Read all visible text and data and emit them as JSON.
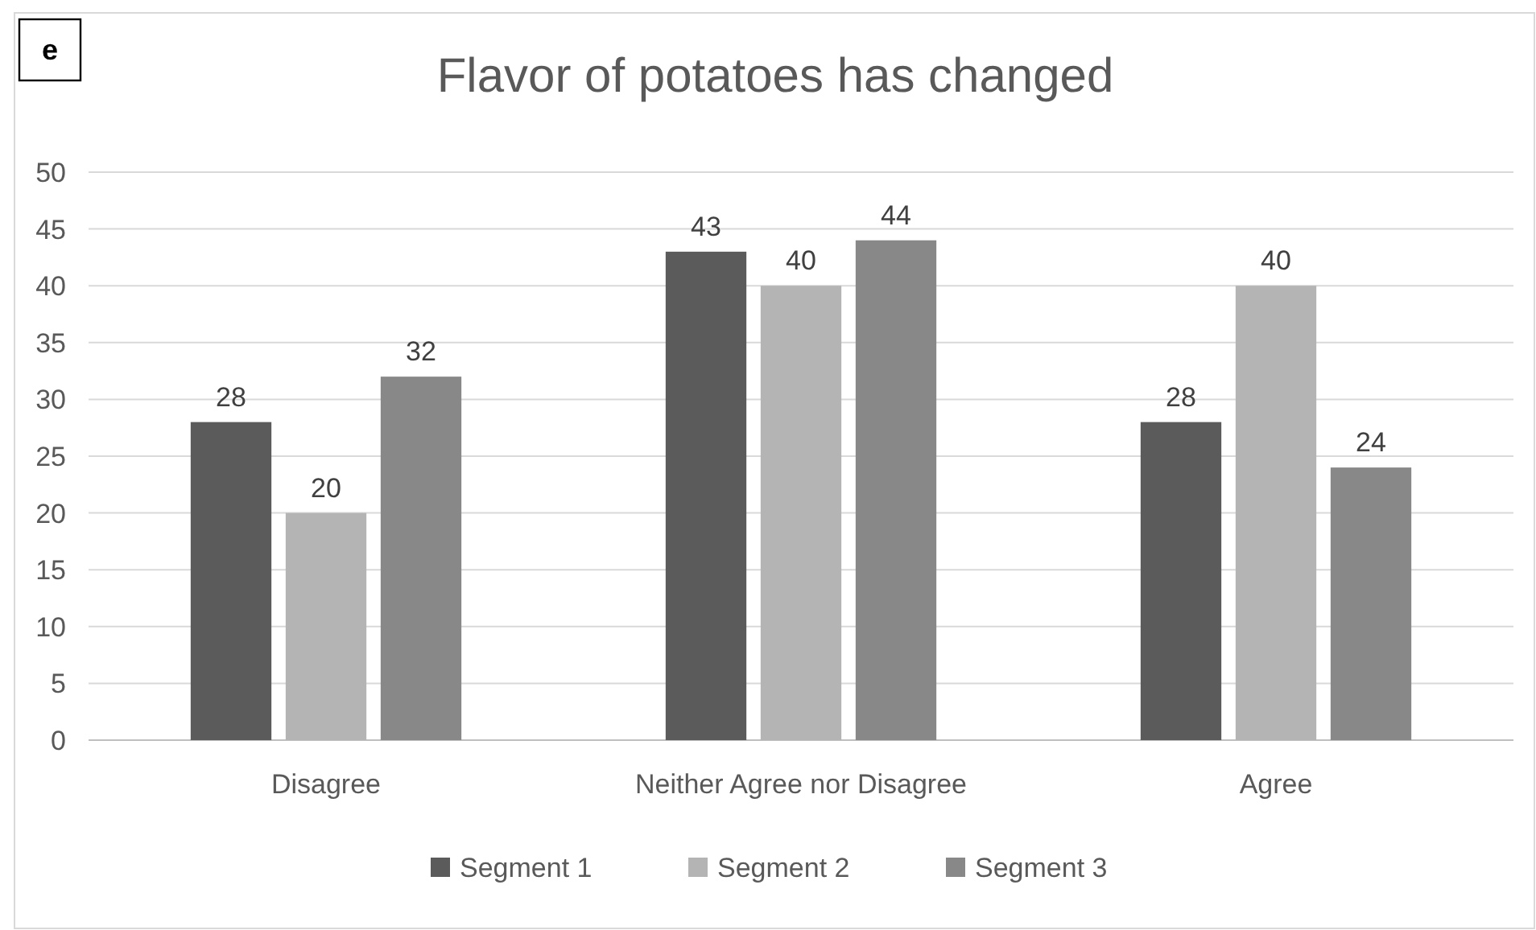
{
  "chart_data": {
    "type": "bar",
    "title": "Flavor of potatoes has changed",
    "annotations": [
      "e"
    ],
    "categories": [
      "Disagree",
      "Neither Agree nor Disagree",
      "Agree"
    ],
    "series": [
      {
        "name": "Segment 1",
        "color": "#5b5b5b",
        "values": [
          28,
          43,
          28
        ]
      },
      {
        "name": "Segment 2",
        "color": "#b4b4b4",
        "values": [
          20,
          40,
          40
        ]
      },
      {
        "name": "Segment 3",
        "color": "#888888",
        "values": [
          32,
          44,
          24
        ]
      }
    ],
    "ylim": [
      0,
      50
    ],
    "yticks": [
      0,
      5,
      10,
      15,
      20,
      25,
      30,
      35,
      40,
      45,
      50
    ],
    "grid": "y",
    "legend": "bottom",
    "data_labels": true
  }
}
